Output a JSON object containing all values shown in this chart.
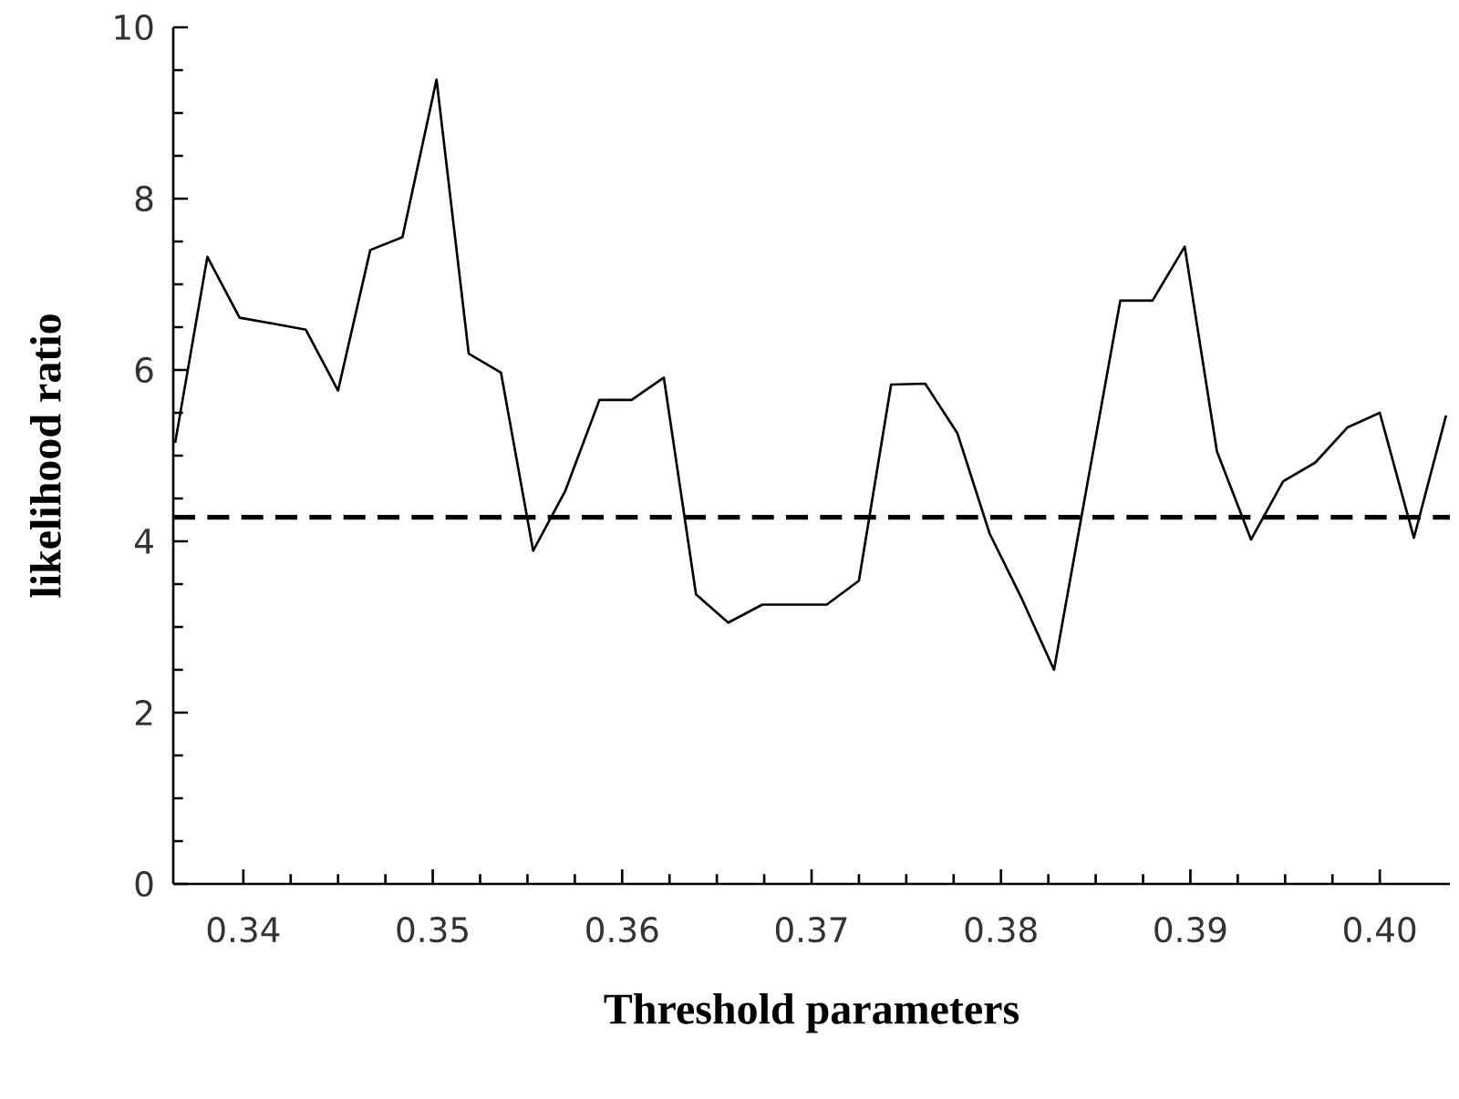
{
  "chart_data": {
    "type": "line",
    "xlabel": "Threshold parameters",
    "ylabel": "likelihood ratio",
    "x": [
      0.3364,
      0.3381,
      0.3398,
      0.3416,
      0.3433,
      0.345,
      0.3467,
      0.3484,
      0.3502,
      0.3519,
      0.3536,
      0.3553,
      0.357,
      0.3588,
      0.3605,
      0.3622,
      0.3639,
      0.3656,
      0.3674,
      0.3691,
      0.3708,
      0.3725,
      0.3742,
      0.376,
      0.3777,
      0.3794,
      0.3811,
      0.3828,
      0.3846,
      0.3863,
      0.388,
      0.3897,
      0.3914,
      0.3932,
      0.3949,
      0.3966,
      0.3983,
      0.4,
      0.4018,
      0.4035
    ],
    "series": [
      {
        "color": "#000000",
        "values": [
          5.15,
          7.32,
          6.61,
          6.54,
          6.47,
          5.76,
          7.4,
          7.55,
          9.39,
          6.19,
          5.97,
          3.89,
          4.59,
          5.65,
          5.65,
          5.91,
          3.38,
          3.05,
          3.26,
          3.26,
          3.26,
          3.54,
          5.83,
          5.84,
          5.26,
          4.09,
          3.33,
          2.5,
          4.72,
          6.81,
          6.81,
          7.44,
          5.05,
          4.02,
          4.7,
          4.92,
          5.33,
          5.5,
          4.04,
          5.47
        ]
      }
    ],
    "xlim": [
      0.3363,
      0.4037
    ],
    "ylim": [
      0,
      10
    ],
    "xticks": [
      0.34,
      0.35,
      0.36,
      0.37,
      0.38,
      0.39,
      {
        "value": 0.4,
        "label": "0.40"
      }
    ],
    "yticks": [
      0,
      2,
      4,
      6,
      8,
      10
    ],
    "ref_lines": [
      {
        "axis": "y",
        "value": 4.28,
        "color": "#000000",
        "line_style": "dashed"
      }
    ],
    "grid": false,
    "marker": "none",
    "line_style": "solid"
  }
}
